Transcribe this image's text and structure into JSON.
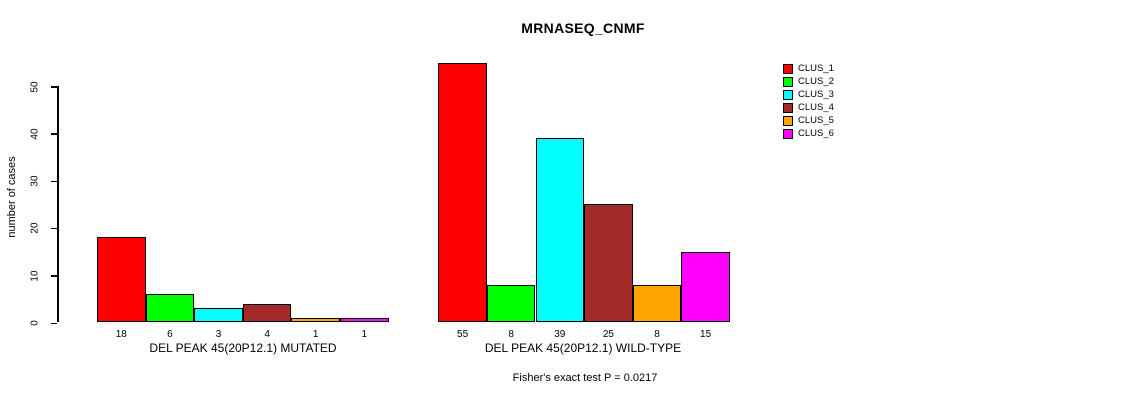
{
  "title": "MRNASEQ_CNMF",
  "chart_data": {
    "type": "bar",
    "title": "MRNASEQ_CNMF",
    "ylabel": "number of cases",
    "xlabel": "",
    "ylim": [
      0,
      55
    ],
    "yticks": [
      0,
      10,
      20,
      30,
      40,
      50
    ],
    "grid": false,
    "legend_position": "right",
    "series": [
      {
        "name": "CLUS_1",
        "color": "#FF0000"
      },
      {
        "name": "CLUS_2",
        "color": "#00FF00"
      },
      {
        "name": "CLUS_3",
        "color": "#00FFFF"
      },
      {
        "name": "CLUS_4",
        "color": "#A52A2A"
      },
      {
        "name": "CLUS_5",
        "color": "#FFA500"
      },
      {
        "name": "CLUS_6",
        "color": "#FF00FF"
      }
    ],
    "groups": [
      {
        "label": "DEL PEAK 45(20P12.1) MUTATED",
        "values": [
          18,
          6,
          3,
          4,
          1,
          1
        ]
      },
      {
        "label": "DEL PEAK 45(20P12.1) WILD-TYPE",
        "values": [
          55,
          8,
          39,
          25,
          8,
          15
        ]
      }
    ],
    "annotation": "Fisher's exact test P = 0.0217",
    "axis_color": "#000000",
    "bar_border_color": "#000000"
  }
}
